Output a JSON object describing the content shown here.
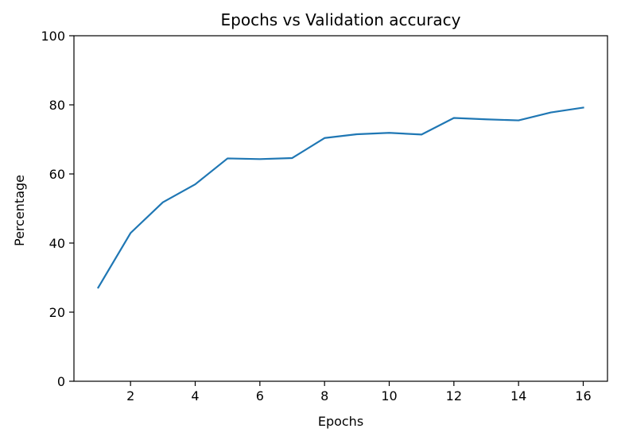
{
  "chart_data": {
    "type": "line",
    "title": "Epochs vs Validation accuracy",
    "xlabel": "Epochs",
    "ylabel": "Percentage",
    "xlim": [
      0.25,
      16.75
    ],
    "ylim": [
      0,
      100
    ],
    "xticks": [
      2,
      4,
      6,
      8,
      10,
      12,
      14,
      16
    ],
    "yticks": [
      0,
      20,
      40,
      60,
      80,
      100
    ],
    "grid": false,
    "series_color": "#1f77b4",
    "series": [
      {
        "x": [
          1,
          2,
          3,
          4,
          5,
          6,
          7,
          8,
          9,
          10,
          11,
          12,
          13,
          14,
          15,
          16
        ],
        "values": [
          27.1,
          42.9,
          51.8,
          57.0,
          64.5,
          64.3,
          64.6,
          70.4,
          71.5,
          71.9,
          71.4,
          76.2,
          75.8,
          75.5,
          77.8,
          79.2
        ]
      }
    ]
  }
}
